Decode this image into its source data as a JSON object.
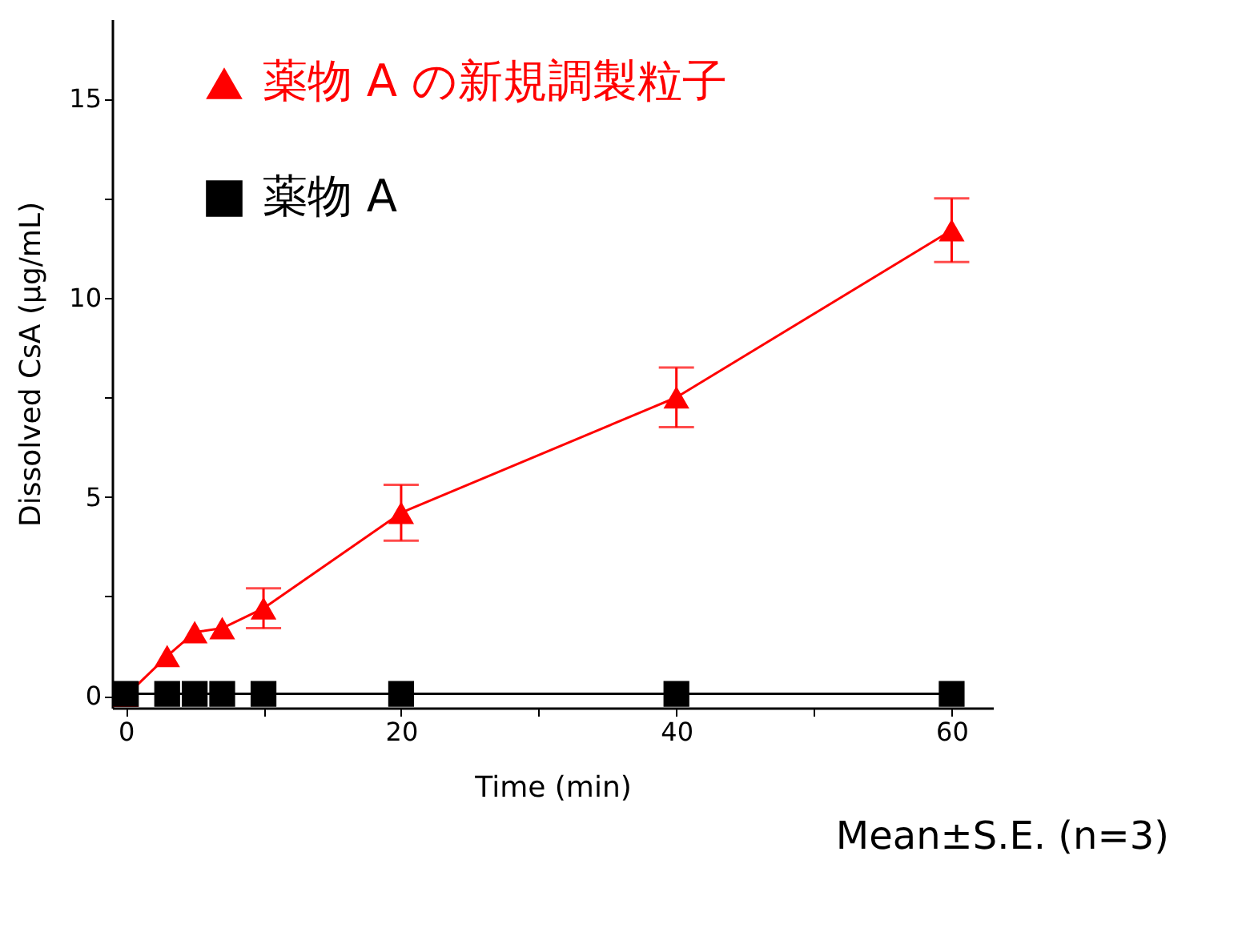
{
  "chart_data": {
    "type": "line",
    "xlabel": "Time (min)",
    "ylabel": "Dissolved CsA (μg/mL)",
    "x": [
      0,
      3,
      5,
      7,
      10,
      20,
      40,
      60
    ],
    "series": [
      {
        "name": "薬物 A の新規調製粒子",
        "color": "#ff0000",
        "marker": "triangle",
        "values": [
          0,
          1.0,
          1.6,
          1.7,
          2.2,
          4.6,
          7.5,
          11.7
        ],
        "errors": [
          null,
          null,
          null,
          null,
          0.5,
          0.7,
          0.75,
          0.8
        ]
      },
      {
        "name": "薬物 A",
        "color": "#000000",
        "marker": "square",
        "values": [
          0.05,
          0.05,
          0.05,
          0.05,
          0.05,
          0.05,
          0.05,
          0.05
        ]
      }
    ],
    "xlim": [
      -1,
      63
    ],
    "ylim": [
      -0.3,
      17
    ],
    "xticks": [
      0,
      {
        "value": 10,
        "label": null
      },
      20,
      {
        "value": 30,
        "label": null
      },
      40,
      {
        "value": 50,
        "label": null
      },
      60
    ],
    "yticks": [
      0,
      {
        "value": 2.5,
        "label": null
      },
      5,
      {
        "value": 7.5,
        "label": null
      },
      10,
      {
        "value": 12.5,
        "label": null
      },
      15
    ],
    "legend": "top left",
    "grid": false,
    "annotations": [
      "Mean±S.E. (n=3)"
    ]
  }
}
